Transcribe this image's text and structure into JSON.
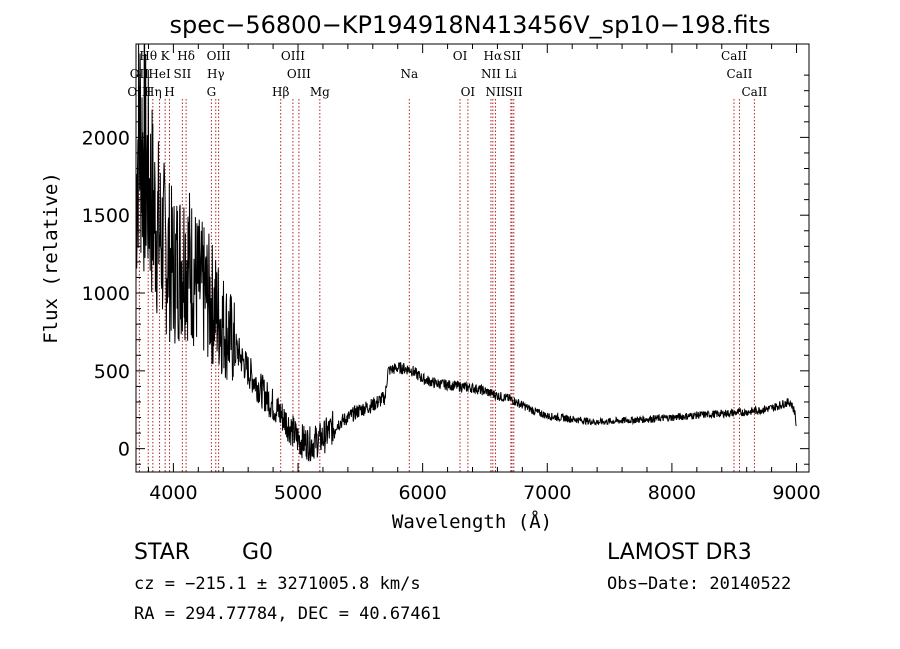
{
  "chart_data": {
    "type": "line",
    "title": "spec−56800−KP194918N413456V_sp10−198.fits",
    "xlabel": "Wavelength (Å)",
    "ylabel": "Flux (relative)",
    "xlim": [
      3700,
      9100
    ],
    "ylim": [
      -150,
      2600
    ],
    "xticks": [
      4000,
      5000,
      6000,
      7000,
      8000,
      9000
    ],
    "yticks": [
      0,
      500,
      1000,
      1500,
      2000
    ],
    "spectrum_keypoints": [
      [
        3700,
        1600
      ],
      [
        3720,
        2100
      ],
      [
        3760,
        1900
      ],
      [
        3800,
        1700
      ],
      [
        3850,
        1500
      ],
      [
        3900,
        1350
      ],
      [
        3950,
        1250
      ],
      [
        4000,
        1150
      ],
      [
        4100,
        1250
      ],
      [
        4200,
        1050
      ],
      [
        4300,
        950
      ],
      [
        4400,
        800
      ],
      [
        4500,
        650
      ],
      [
        4600,
        500
      ],
      [
        4700,
        380
      ],
      [
        4800,
        280
      ],
      [
        4900,
        180
      ],
      [
        5000,
        60
      ],
      [
        5100,
        30
      ],
      [
        5200,
        70
      ],
      [
        5300,
        150
      ],
      [
        5400,
        200
      ],
      [
        5500,
        250
      ],
      [
        5600,
        280
      ],
      [
        5700,
        330
      ],
      [
        5720,
        500
      ],
      [
        5800,
        520
      ],
      [
        5900,
        510
      ],
      [
        6000,
        450
      ],
      [
        6100,
        420
      ],
      [
        6200,
        410
      ],
      [
        6300,
        400
      ],
      [
        6400,
        390
      ],
      [
        6500,
        370
      ],
      [
        6600,
        340
      ],
      [
        6700,
        320
      ],
      [
        6800,
        280
      ],
      [
        6900,
        240
      ],
      [
        7000,
        210
      ],
      [
        7200,
        190
      ],
      [
        7400,
        170
      ],
      [
        7600,
        180
      ],
      [
        7800,
        190
      ],
      [
        8000,
        200
      ],
      [
        8200,
        215
      ],
      [
        8400,
        225
      ],
      [
        8600,
        235
      ],
      [
        8800,
        260
      ],
      [
        8900,
        290
      ],
      [
        8950,
        300
      ],
      [
        8990,
        230
      ],
      [
        9000,
        100
      ]
    ],
    "emission_lines": [
      {
        "label": "Hθ",
        "wave": 3798,
        "row": 0
      },
      {
        "label": "K",
        "wave": 3934,
        "row": 0
      },
      {
        "label": "Hδ",
        "wave": 4102,
        "row": 0
      },
      {
        "label": "OIII",
        "wave": 4363,
        "row": 0
      },
      {
        "label": "OIII",
        "wave": 4959,
        "row": 0
      },
      {
        "label": "OI",
        "wave": 6300,
        "row": 0
      },
      {
        "label": "Hα",
        "wave": 6563,
        "row": 0
      },
      {
        "label": "SII",
        "wave": 6717,
        "row": 0
      },
      {
        "label": "CaII",
        "wave": 8498,
        "row": 0
      },
      {
        "label": "OII",
        "wave": 3727,
        "row": 1
      },
      {
        "label": "HeI",
        "wave": 3889,
        "row": 1
      },
      {
        "label": "SII",
        "wave": 4072,
        "row": 1
      },
      {
        "label": "Hγ",
        "wave": 4340,
        "row": 1
      },
      {
        "label": "OIII",
        "wave": 5007,
        "row": 1
      },
      {
        "label": "Na",
        "wave": 5893,
        "row": 1
      },
      {
        "label": "NII",
        "wave": 6548,
        "row": 1
      },
      {
        "label": "Li",
        "wave": 6708,
        "row": 1
      },
      {
        "label": "CaII",
        "wave": 8542,
        "row": 1
      },
      {
        "label": "OIII",
        "wave": 3727,
        "row": 2
      },
      {
        "label": "Hη",
        "wave": 3835,
        "row": 2
      },
      {
        "label": "H",
        "wave": 3969,
        "row": 2
      },
      {
        "label": "G",
        "wave": 4305,
        "row": 2
      },
      {
        "label": "Hβ",
        "wave": 4861,
        "row": 2
      },
      {
        "label": "Mg",
        "wave": 5175,
        "row": 2
      },
      {
        "label": "OI",
        "wave": 6363,
        "row": 2
      },
      {
        "label": "NII",
        "wave": 6584,
        "row": 2
      },
      {
        "label": "SII",
        "wave": 6731,
        "row": 2
      },
      {
        "label": "CaII",
        "wave": 8662,
        "row": 2
      }
    ]
  },
  "info": {
    "object_class": "STAR",
    "subclass": "G0",
    "survey": "LAMOST DR3",
    "cz": "cz = −215.1 ± 3271005.8 km/s",
    "obs_date": "Obs−Date: 20140522",
    "radec": "RA = 294.77784, DEC =  40.67461"
  }
}
